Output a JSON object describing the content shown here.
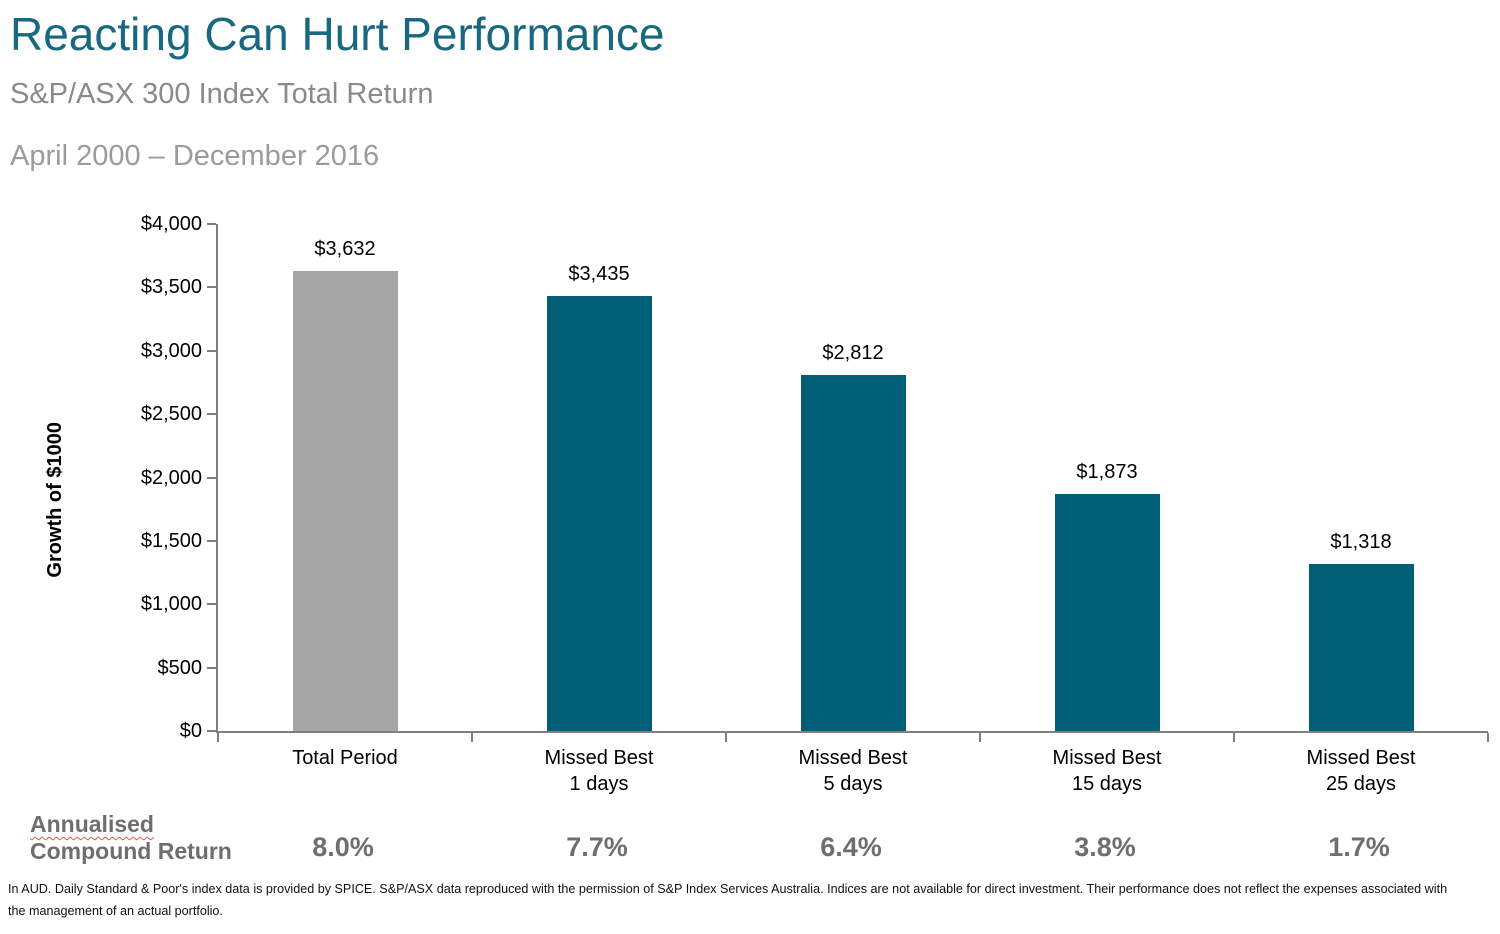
{
  "header": {
    "title": "Reacting Can Hurt Performance",
    "subtitle": "S&P/ASX 300 Index Total Return",
    "period": "April 2000 – December 2016"
  },
  "colors": {
    "title_teal": "#176880",
    "bar_teal": "#005F76",
    "bar_gray": "#A6A6A6",
    "axis_gray": "#808080",
    "returns_gray": "#6E6E6E",
    "spellcheck_squiggle_red": "#E9594C"
  },
  "chart_data": {
    "type": "bar",
    "title": "Reacting Can Hurt Performance",
    "subtitle": "S&P/ASX 300 Index Total Return",
    "period": "April 2000 – December 2016",
    "ylabel": "Growth of $1000",
    "xlabel": "",
    "ylim": [
      0,
      4000
    ],
    "grid": false,
    "legend": false,
    "y_ticks": [
      {
        "value": 0,
        "label": "$0"
      },
      {
        "value": 500,
        "label": "$500"
      },
      {
        "value": 1000,
        "label": "$1,000"
      },
      {
        "value": 1500,
        "label": "$1,500"
      },
      {
        "value": 2000,
        "label": "$2,000"
      },
      {
        "value": 2500,
        "label": "$2,500"
      },
      {
        "value": 3000,
        "label": "$3,000"
      },
      {
        "value": 3500,
        "label": "$3,500"
      },
      {
        "value": 4000,
        "label": "$4,000"
      }
    ],
    "categories": [
      "Total Period",
      "Missed Best\n1 days",
      "Missed Best\n5 days",
      "Missed Best\n15 days",
      "Missed Best\n25 days"
    ],
    "values": [
      3632,
      3435,
      2812,
      1873,
      1318
    ],
    "value_labels": [
      "$3,632",
      "$3,435",
      "$2,812",
      "$1,873",
      "$1,318"
    ],
    "bar_colors": [
      "#A6A6A6",
      "#005F76",
      "#005F76",
      "#005F76",
      "#005F76"
    ],
    "annualised_compound_return": [
      "8.0%",
      "7.7%",
      "6.4%",
      "3.8%",
      "1.7%"
    ]
  },
  "returns_row": {
    "label_line1": "Annualised",
    "label_line2": "Compound Return"
  },
  "footer": {
    "text": "In AUD. Daily Standard & Poor's index data is provided by SPICE. S&P/ASX data reproduced with the permission of S&P Index Services Australia. Indices are not available for direct investment. Their performance does not reflect the expenses associated with the management of an actual portfolio."
  }
}
